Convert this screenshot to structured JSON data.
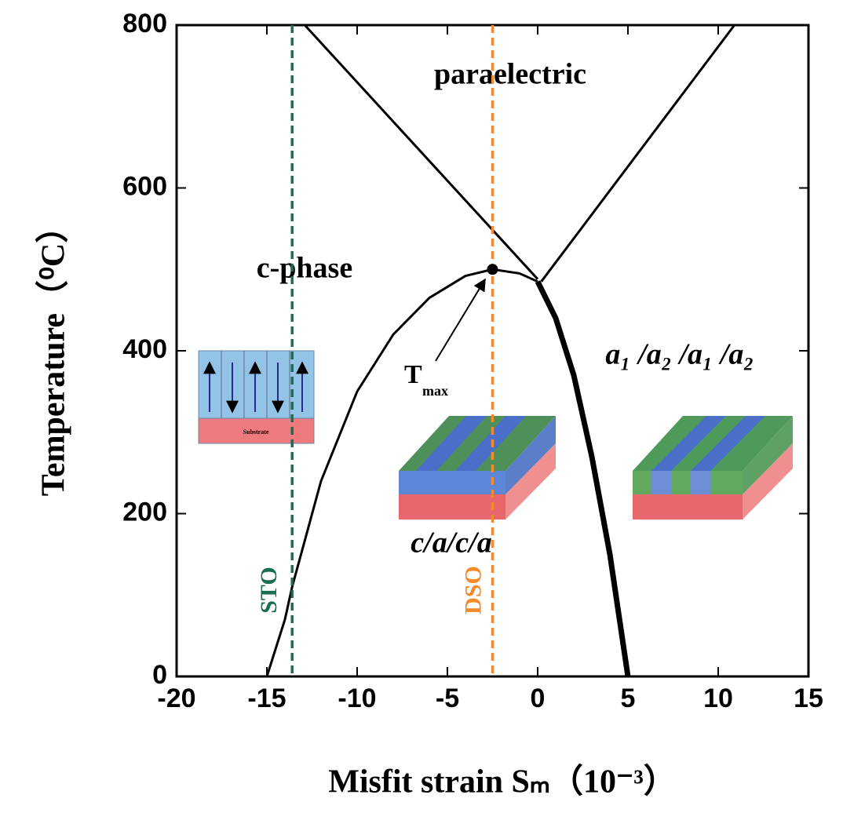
{
  "chart_data": {
    "type": "line",
    "xlabel": "Misfit strain Sₘ（10⁻³）",
    "ylabel": "Temperature（⁰C）",
    "xlim": [
      -20,
      15
    ],
    "ylim": [
      0,
      800
    ],
    "xticks": [
      -20,
      -15,
      -10,
      -5,
      0,
      5,
      10,
      15
    ],
    "yticks": [
      0,
      200,
      400,
      600,
      800
    ],
    "series": [
      {
        "color": "#000000",
        "width": 3,
        "x": [
          -15,
          -14,
          -13.6,
          -12,
          -10,
          -8,
          -6,
          -4,
          -2.5,
          -1,
          0
        ],
        "values": [
          0,
          70,
          110,
          240,
          350,
          420,
          465,
          492,
          500,
          495,
          485
        ]
      },
      {
        "color": "#000000",
        "width": 7,
        "x": [
          0,
          1,
          2,
          3,
          4,
          5
        ],
        "values": [
          485,
          440,
          370,
          270,
          150,
          0
        ]
      },
      {
        "color": "#000000",
        "width": 3,
        "x": [
          -12.9,
          0
        ],
        "values": [
          800,
          488
        ]
      },
      {
        "color": "#000000",
        "width": 3,
        "x": [
          0.2,
          10.9
        ],
        "values": [
          485,
          800
        ]
      }
    ],
    "reference_lines": [
      {
        "x": -13.6,
        "label": "STO",
        "color": "#1b6e52"
      },
      {
        "x": -2.5,
        "label": "DSO",
        "color": "#f58a2a"
      }
    ],
    "marker": {
      "x": -2.5,
      "y": 500,
      "label": "T",
      "sub": "max"
    },
    "annotations": [
      "paraelectric",
      "c-phase",
      "a₁ /a₂ /a₁ /a₂",
      "c/a/c/a"
    ],
    "inset_label": "Substrate"
  }
}
